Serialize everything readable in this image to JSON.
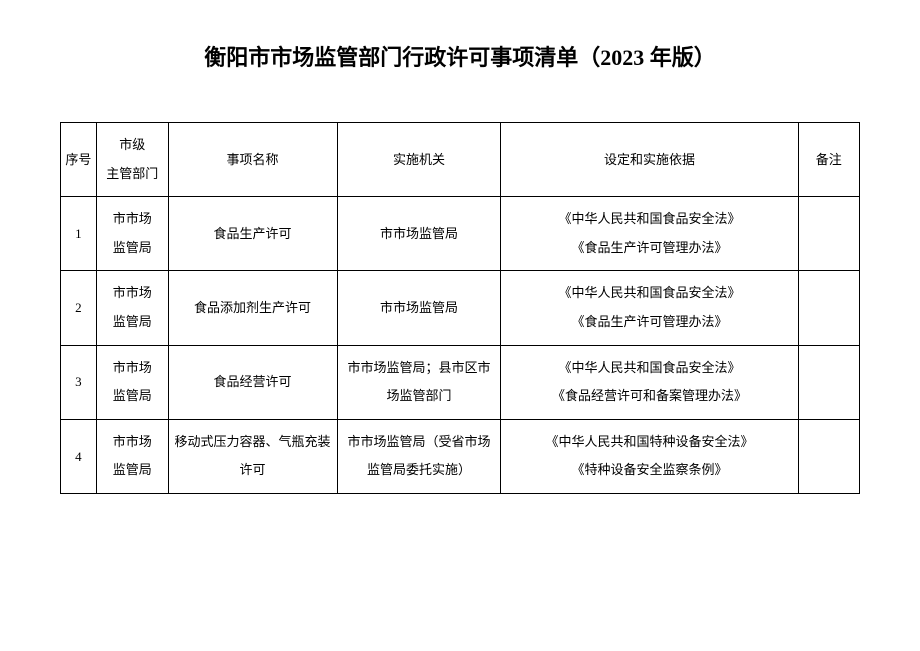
{
  "title": "衡阳市市场监管部门行政许可事项清单（2023 年版）",
  "table": {
    "headers": {
      "seq": "序号",
      "dept": "市级\n主管部门",
      "name": "事项名称",
      "agency": "实施机关",
      "basis": "设定和实施依据",
      "remark": "备注"
    },
    "rows": [
      {
        "seq": "1",
        "dept": "市市场\n监管局",
        "name": "食品生产许可",
        "agency": "市市场监管局",
        "basis": "《中华人民共和国食品安全法》\n《食品生产许可管理办法》",
        "remark": ""
      },
      {
        "seq": "2",
        "dept": "市市场\n监管局",
        "name": "食品添加剂生产许可",
        "agency": "市市场监管局",
        "basis": "《中华人民共和国食品安全法》\n《食品生产许可管理办法》",
        "remark": ""
      },
      {
        "seq": "3",
        "dept": "市市场\n监管局",
        "name": "食品经营许可",
        "agency": "市市场监管局；县市区市\n场监管部门",
        "basis": "《中华人民共和国食品安全法》\n《食品经营许可和备案管理办法》",
        "remark": ""
      },
      {
        "seq": "4",
        "dept": "市市场\n监管局",
        "name": "移动式压力容器、气瓶充装\n许可",
        "agency": "市市场监管局（受省市场\n监管局委托实施）",
        "basis": "《中华人民共和国特种设备安全法》\n《特种设备安全监察条例》",
        "remark": ""
      }
    ]
  },
  "styling": {
    "background_color": "#ffffff",
    "text_color": "#000000",
    "border_color": "#000000",
    "title_fontsize": 22,
    "cell_fontsize": 13,
    "font_family": "SimSun"
  }
}
